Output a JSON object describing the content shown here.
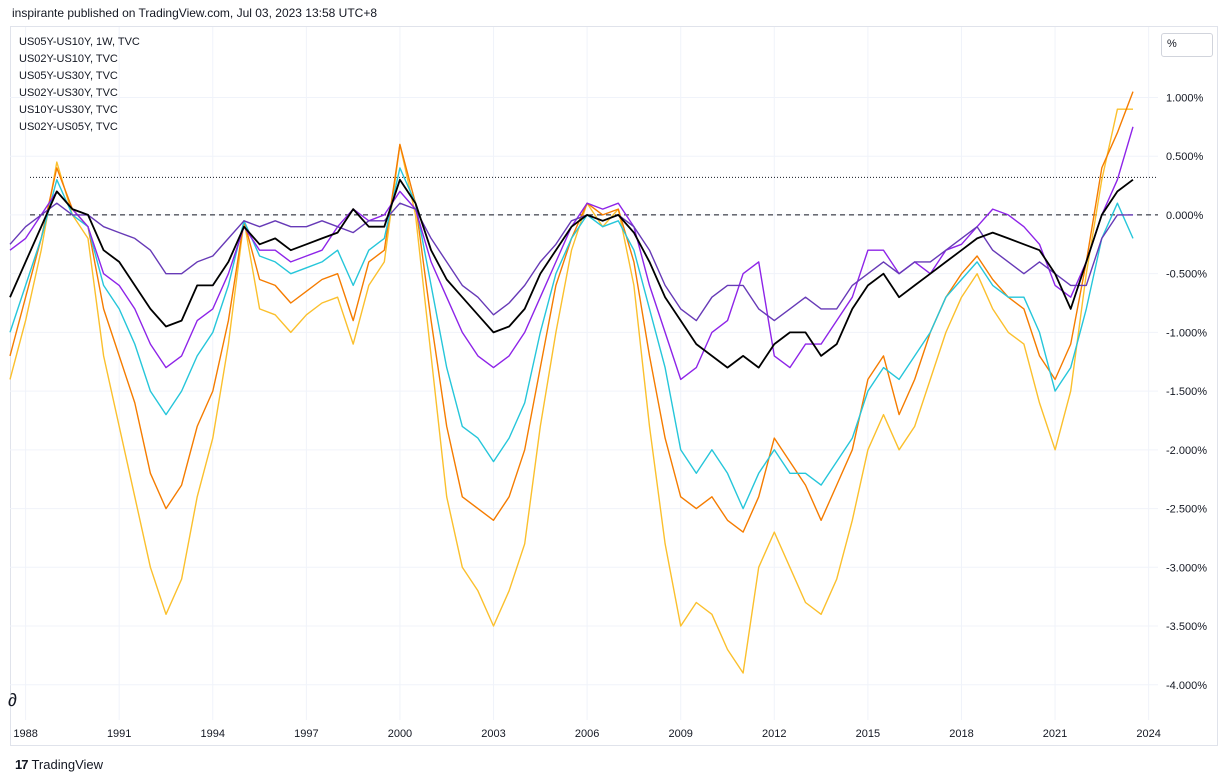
{
  "header": {
    "published": "inspirante published on TradingView.com, Jul 03, 2023 13:58 UTC+8"
  },
  "legend": [
    "US05Y-US10Y, 1W, TVC",
    "US02Y-US10Y, TVC",
    "US05Y-US30Y, TVC",
    "US02Y-US30Y, TVC",
    "US10Y-US30Y, TVC",
    "US02Y-US05Y, TVC"
  ],
  "unit_label": "%",
  "footer": {
    "brand": "TradingView",
    "logo": "17"
  },
  "chart_data": {
    "type": "line",
    "xlabel": "",
    "ylabel": "",
    "x_ticks": [
      "1988",
      "1991",
      "1994",
      "1997",
      "2000",
      "2003",
      "2006",
      "2009",
      "2012",
      "2015",
      "2018",
      "2021",
      "2024"
    ],
    "y_ticks": [
      "1.000%",
      "0.500%",
      "0.000%",
      "-0.500%",
      "-1.000%",
      "-1.500%",
      "-2.000%",
      "-2.500%",
      "-3.000%",
      "-3.500%",
      "-4.000%"
    ],
    "xlim": [
      1987.5,
      2024.3
    ],
    "ylim": [
      -4.3,
      1.6
    ],
    "grid": true,
    "reference_lines": [
      {
        "y": 0.0,
        "style": "dashed"
      },
      {
        "y": 0.32,
        "style": "dotted"
      }
    ],
    "series": [
      {
        "color": "#000000",
        "width": 1.8,
        "x": [
          1987.5,
          1988.0,
          1988.5,
          1989.0,
          1989.5,
          1990.0,
          1990.5,
          1991.0,
          1991.5,
          1992.0,
          1992.5,
          1993.0,
          1993.5,
          1994.0,
          1994.5,
          1995.0,
          1995.5,
          1996.0,
          1996.5,
          1997.0,
          1997.5,
          1998.0,
          1998.5,
          1999.0,
          1999.5,
          2000.0,
          2000.5,
          2001.0,
          2001.5,
          2002.0,
          2002.5,
          2003.0,
          2003.5,
          2004.0,
          2004.5,
          2005.0,
          2005.5,
          2006.0,
          2006.5,
          2007.0,
          2007.5,
          2008.0,
          2008.5,
          2009.0,
          2009.5,
          2010.0,
          2010.5,
          2011.0,
          2011.5,
          2012.0,
          2012.5,
          2013.0,
          2013.5,
          2014.0,
          2014.5,
          2015.0,
          2015.5,
          2016.0,
          2016.5,
          2017.0,
          2017.5,
          2018.0,
          2018.5,
          2019.0,
          2019.5,
          2020.0,
          2020.5,
          2021.0,
          2021.5,
          2022.0,
          2022.5,
          2023.0,
          2023.5
        ],
        "y": [
          -0.7,
          -0.4,
          -0.1,
          0.2,
          0.05,
          0.0,
          -0.3,
          -0.4,
          -0.6,
          -0.8,
          -0.95,
          -0.9,
          -0.6,
          -0.6,
          -0.4,
          -0.1,
          -0.25,
          -0.2,
          -0.3,
          -0.25,
          -0.2,
          -0.15,
          0.05,
          -0.1,
          -0.1,
          0.3,
          0.1,
          -0.3,
          -0.55,
          -0.7,
          -0.85,
          -1.0,
          -0.95,
          -0.8,
          -0.5,
          -0.3,
          -0.1,
          0.0,
          -0.05,
          0.0,
          -0.15,
          -0.4,
          -0.7,
          -0.9,
          -1.1,
          -1.2,
          -1.3,
          -1.2,
          -1.3,
          -1.1,
          -1.0,
          -1.0,
          -1.2,
          -1.1,
          -0.8,
          -0.6,
          -0.5,
          -0.7,
          -0.6,
          -0.5,
          -0.4,
          -0.3,
          -0.2,
          -0.15,
          -0.2,
          -0.25,
          -0.3,
          -0.5,
          -0.8,
          -0.4,
          0.0,
          0.2,
          0.3
        ]
      },
      {
        "color": "#8e24e8",
        "width": 1.4,
        "x": [
          1987.5,
          1988.0,
          1988.5,
          1989.0,
          1989.5,
          1990.0,
          1990.5,
          1991.0,
          1991.5,
          1992.0,
          1992.5,
          1993.0,
          1993.5,
          1994.0,
          1994.5,
          1995.0,
          1995.5,
          1996.0,
          1996.5,
          1997.0,
          1997.5,
          1998.0,
          1998.5,
          1999.0,
          1999.5,
          2000.0,
          2000.5,
          2001.0,
          2001.5,
          2002.0,
          2002.5,
          2003.0,
          2003.5,
          2004.0,
          2004.5,
          2005.0,
          2005.5,
          2006.0,
          2006.5,
          2007.0,
          2007.5,
          2008.0,
          2008.5,
          2009.0,
          2009.5,
          2010.0,
          2010.5,
          2011.0,
          2011.5,
          2012.0,
          2012.5,
          2013.0,
          2013.5,
          2014.0,
          2014.5,
          2015.0,
          2015.5,
          2016.0,
          2016.5,
          2017.0,
          2017.5,
          2018.0,
          2018.5,
          2019.0,
          2019.5,
          2020.0,
          2020.5,
          2021.0,
          2021.5,
          2022.0,
          2022.5,
          2023.0,
          2023.5
        ],
        "y": [
          -0.3,
          -0.2,
          0.0,
          0.2,
          0.05,
          -0.1,
          -0.5,
          -0.6,
          -0.8,
          -1.1,
          -1.3,
          -1.2,
          -0.9,
          -0.8,
          -0.5,
          -0.1,
          -0.3,
          -0.3,
          -0.4,
          -0.35,
          -0.3,
          -0.1,
          0.05,
          -0.05,
          0.0,
          0.2,
          0.05,
          -0.4,
          -0.7,
          -1.0,
          -1.2,
          -1.3,
          -1.2,
          -1.0,
          -0.7,
          -0.4,
          -0.1,
          0.1,
          0.05,
          0.1,
          -0.1,
          -0.6,
          -1.0,
          -1.4,
          -1.3,
          -1.0,
          -0.9,
          -0.5,
          -0.4,
          -1.2,
          -1.3,
          -1.1,
          -1.1,
          -0.9,
          -0.7,
          -0.3,
          -0.3,
          -0.5,
          -0.4,
          -0.5,
          -0.3,
          -0.25,
          -0.1,
          0.05,
          0.0,
          -0.1,
          -0.25,
          -0.6,
          -0.7,
          -0.4,
          0.0,
          0.3,
          0.75
        ]
      },
      {
        "color": "#26c6da",
        "width": 1.4,
        "x": [
          1987.5,
          1988.0,
          1988.5,
          1989.0,
          1989.5,
          1990.0,
          1990.5,
          1991.0,
          1991.5,
          1992.0,
          1992.5,
          1993.0,
          1993.5,
          1994.0,
          1994.5,
          1995.0,
          1995.5,
          1996.0,
          1996.5,
          1997.0,
          1997.5,
          1998.0,
          1998.5,
          1999.0,
          1999.5,
          2000.0,
          2000.5,
          2001.0,
          2001.5,
          2002.0,
          2002.5,
          2003.0,
          2003.5,
          2004.0,
          2004.5,
          2005.0,
          2005.5,
          2006.0,
          2006.5,
          2007.0,
          2007.5,
          2008.0,
          2008.5,
          2009.0,
          2009.5,
          2010.0,
          2010.5,
          2011.0,
          2011.5,
          2012.0,
          2012.5,
          2013.0,
          2013.5,
          2014.0,
          2014.5,
          2015.0,
          2015.5,
          2016.0,
          2016.5,
          2017.0,
          2017.5,
          2018.0,
          2018.5,
          2019.0,
          2019.5,
          2020.0,
          2020.5,
          2021.0,
          2021.5,
          2022.0,
          2022.5,
          2023.0,
          2023.5
        ],
        "y": [
          -1.0,
          -0.6,
          -0.2,
          0.3,
          0.0,
          -0.1,
          -0.6,
          -0.8,
          -1.1,
          -1.5,
          -1.7,
          -1.5,
          -1.2,
          -1.0,
          -0.6,
          -0.05,
          -0.35,
          -0.4,
          -0.5,
          -0.45,
          -0.4,
          -0.3,
          -0.6,
          -0.3,
          -0.2,
          0.4,
          0.1,
          -0.6,
          -1.3,
          -1.8,
          -1.9,
          -2.1,
          -1.9,
          -1.6,
          -1.0,
          -0.5,
          -0.2,
          0.0,
          -0.1,
          -0.05,
          -0.3,
          -0.8,
          -1.3,
          -2.0,
          -2.2,
          -2.0,
          -2.2,
          -2.5,
          -2.2,
          -2.0,
          -2.2,
          -2.2,
          -2.3,
          -2.1,
          -1.9,
          -1.5,
          -1.3,
          -1.4,
          -1.2,
          -1.0,
          -0.7,
          -0.55,
          -0.4,
          -0.6,
          -0.7,
          -0.7,
          -1.0,
          -1.5,
          -1.3,
          -0.8,
          -0.2,
          0.1,
          -0.2
        ]
      },
      {
        "color": "#f57c00",
        "width": 1.4,
        "x": [
          1987.5,
          1988.0,
          1988.5,
          1989.0,
          1989.5,
          1990.0,
          1990.5,
          1991.0,
          1991.5,
          1992.0,
          1992.5,
          1993.0,
          1993.5,
          1994.0,
          1994.5,
          1995.0,
          1995.5,
          1996.0,
          1996.5,
          1997.0,
          1997.5,
          1998.0,
          1998.5,
          1999.0,
          1999.5,
          2000.0,
          2000.5,
          2001.0,
          2001.5,
          2002.0,
          2002.5,
          2003.0,
          2003.5,
          2004.0,
          2004.5,
          2005.0,
          2005.5,
          2006.0,
          2006.5,
          2007.0,
          2007.5,
          2008.0,
          2008.5,
          2009.0,
          2009.5,
          2010.0,
          2010.5,
          2011.0,
          2011.5,
          2012.0,
          2012.5,
          2013.0,
          2013.5,
          2014.0,
          2014.5,
          2015.0,
          2015.5,
          2016.0,
          2016.5,
          2017.0,
          2017.5,
          2018.0,
          2018.5,
          2019.0,
          2019.5,
          2020.0,
          2020.5,
          2021.0,
          2021.5,
          2022.0,
          2022.5,
          2023.0,
          2023.5
        ],
        "y": [
          -1.2,
          -0.7,
          -0.2,
          0.4,
          0.05,
          -0.1,
          -0.8,
          -1.2,
          -1.6,
          -2.2,
          -2.5,
          -2.3,
          -1.8,
          -1.5,
          -0.9,
          -0.05,
          -0.55,
          -0.6,
          -0.75,
          -0.65,
          -0.55,
          -0.5,
          -0.9,
          -0.4,
          -0.3,
          0.6,
          0.1,
          -0.9,
          -1.8,
          -2.4,
          -2.5,
          -2.6,
          -2.4,
          -2.0,
          -1.3,
          -0.6,
          -0.2,
          0.1,
          0.0,
          0.05,
          -0.4,
          -1.2,
          -1.9,
          -2.4,
          -2.5,
          -2.4,
          -2.6,
          -2.7,
          -2.4,
          -1.9,
          -2.1,
          -2.3,
          -2.6,
          -2.3,
          -2.0,
          -1.4,
          -1.2,
          -1.7,
          -1.4,
          -1.0,
          -0.7,
          -0.5,
          -0.35,
          -0.55,
          -0.7,
          -0.8,
          -1.2,
          -1.4,
          -1.1,
          -0.4,
          0.4,
          0.7,
          1.05
        ]
      },
      {
        "color": "#fbc02d",
        "width": 1.4,
        "x": [
          1987.5,
          1988.0,
          1988.5,
          1989.0,
          1989.5,
          1990.0,
          1990.5,
          1991.0,
          1991.5,
          1992.0,
          1992.5,
          1993.0,
          1993.5,
          1994.0,
          1994.5,
          1995.0,
          1995.5,
          1996.0,
          1996.5,
          1997.0,
          1997.5,
          1998.0,
          1998.5,
          1999.0,
          1999.5,
          2000.0,
          2000.5,
          2001.0,
          2001.5,
          2002.0,
          2002.5,
          2003.0,
          2003.5,
          2004.0,
          2004.5,
          2005.0,
          2005.5,
          2006.0,
          2006.5,
          2007.0,
          2007.5,
          2008.0,
          2008.5,
          2009.0,
          2009.5,
          2010.0,
          2010.5,
          2011.0,
          2011.5,
          2012.0,
          2012.5,
          2013.0,
          2013.5,
          2014.0,
          2014.5,
          2015.0,
          2015.5,
          2016.0,
          2016.5,
          2017.0,
          2017.5,
          2018.0,
          2018.5,
          2019.0,
          2019.5,
          2020.0,
          2020.5,
          2021.0,
          2021.5,
          2022.0,
          2022.5,
          2023.0,
          2023.5
        ],
        "y": [
          -1.4,
          -0.9,
          -0.3,
          0.45,
          0.0,
          -0.2,
          -1.2,
          -1.8,
          -2.4,
          -3.0,
          -3.4,
          -3.1,
          -2.4,
          -1.9,
          -1.1,
          -0.05,
          -0.8,
          -0.85,
          -1.0,
          -0.85,
          -0.75,
          -0.7,
          -1.1,
          -0.6,
          -0.4,
          0.6,
          0.0,
          -1.2,
          -2.4,
          -3.0,
          -3.2,
          -3.5,
          -3.2,
          -2.8,
          -1.8,
          -1.0,
          -0.3,
          0.1,
          -0.1,
          0.05,
          -0.6,
          -1.8,
          -2.8,
          -3.5,
          -3.3,
          -3.4,
          -3.7,
          -3.9,
          -3.0,
          -2.7,
          -3.0,
          -3.3,
          -3.4,
          -3.1,
          -2.6,
          -2.0,
          -1.7,
          -2.0,
          -1.8,
          -1.4,
          -1.0,
          -0.7,
          -0.5,
          -0.8,
          -1.0,
          -1.1,
          -1.6,
          -2.0,
          -1.5,
          -0.5,
          0.3,
          0.9,
          0.9
        ]
      },
      {
        "color": "#673ab7",
        "width": 1.4,
        "x": [
          1987.5,
          1988.0,
          1988.5,
          1989.0,
          1989.5,
          1990.0,
          1990.5,
          1991.0,
          1991.5,
          1992.0,
          1992.5,
          1993.0,
          1993.5,
          1994.0,
          1994.5,
          1995.0,
          1995.5,
          1996.0,
          1996.5,
          1997.0,
          1997.5,
          1998.0,
          1998.5,
          1999.0,
          1999.5,
          2000.0,
          2000.5,
          2001.0,
          2001.5,
          2002.0,
          2002.5,
          2003.0,
          2003.5,
          2004.0,
          2004.5,
          2005.0,
          2005.5,
          2006.0,
          2006.5,
          2007.0,
          2007.5,
          2008.0,
          2008.5,
          2009.0,
          2009.5,
          2010.0,
          2010.5,
          2011.0,
          2011.5,
          2012.0,
          2012.5,
          2013.0,
          2013.5,
          2014.0,
          2014.5,
          2015.0,
          2015.5,
          2016.0,
          2016.5,
          2017.0,
          2017.5,
          2018.0,
          2018.5,
          2019.0,
          2019.5,
          2020.0,
          2020.5,
          2021.0,
          2021.5,
          2022.0,
          2022.5,
          2023.0,
          2023.5
        ],
        "y": [
          -0.25,
          -0.1,
          0.0,
          0.1,
          0.0,
          0.0,
          -0.1,
          -0.15,
          -0.2,
          -0.3,
          -0.5,
          -0.5,
          -0.4,
          -0.35,
          -0.2,
          -0.05,
          -0.1,
          -0.05,
          -0.1,
          -0.1,
          -0.05,
          -0.1,
          -0.15,
          -0.05,
          -0.05,
          0.1,
          0.05,
          -0.2,
          -0.4,
          -0.6,
          -0.7,
          -0.85,
          -0.75,
          -0.6,
          -0.4,
          -0.25,
          -0.05,
          0.0,
          -0.05,
          0.0,
          -0.1,
          -0.3,
          -0.6,
          -0.8,
          -0.9,
          -0.7,
          -0.6,
          -0.6,
          -0.8,
          -0.9,
          -0.8,
          -0.7,
          -0.8,
          -0.8,
          -0.6,
          -0.5,
          -0.4,
          -0.5,
          -0.4,
          -0.4,
          -0.3,
          -0.2,
          -0.1,
          -0.3,
          -0.4,
          -0.5,
          -0.4,
          -0.5,
          -0.6,
          -0.6,
          -0.2,
          0.0,
          0.0
        ]
      }
    ]
  }
}
